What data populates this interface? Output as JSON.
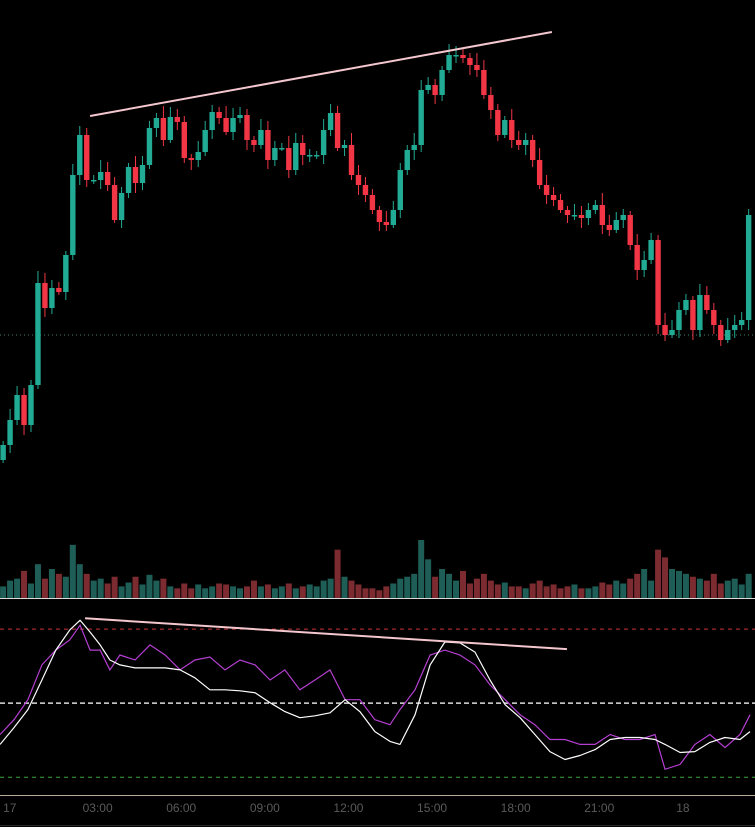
{
  "chart_data": {
    "type": "candlestick",
    "title": "",
    "colors": {
      "up": "#22ab94",
      "down": "#f23645",
      "vol_up": "#1e5e57",
      "vol_down": "#7c2b31",
      "trendline": "#f4c7cf",
      "stoch_k": "#b53fd1",
      "stoch_d": "#ffffff",
      "level_high": "#c8373d",
      "level_mid": "#dddddd",
      "level_low": "#3fa83f",
      "last_price_line": "#4a7a6a"
    },
    "x_axis": {
      "unit": "hours",
      "start_hour": -0.39,
      "interval_hours": 0.25,
      "ticks": [
        {
          "h": -0.15,
          "label": "17"
        },
        {
          "h": 3,
          "label": "03:00"
        },
        {
          "h": 6,
          "label": "06:00"
        },
        {
          "h": 9,
          "label": "09:00"
        },
        {
          "h": 12,
          "label": "12:00"
        },
        {
          "h": 15,
          "label": "15:00"
        },
        {
          "h": 18,
          "label": "18:00"
        },
        {
          "h": 21,
          "label": "21:00"
        },
        {
          "h": 24,
          "label": "18"
        }
      ]
    },
    "price_ylim": [
      -98,
      500
    ],
    "first_open": 40,
    "closes": [
      55,
      80,
      105,
      75,
      115,
      217,
      192,
      212,
      208,
      245,
      325,
      365,
      320,
      320,
      328,
      315,
      280,
      307,
      333,
      317,
      335,
      372,
      382,
      360,
      383,
      378,
      342,
      340,
      348,
      370,
      388,
      382,
      368,
      382,
      385,
      360,
      355,
      370,
      340,
      352,
      352,
      330,
      357,
      345,
      345,
      345,
      370,
      387,
      352,
      355,
      325,
      315,
      305,
      290,
      278,
      275,
      290,
      330,
      350,
      355,
      410,
      415,
      405,
      430,
      445,
      445,
      442,
      435,
      430,
      405,
      390,
      365,
      380,
      360,
      355,
      360,
      340,
      315,
      305,
      300,
      290,
      285,
      285,
      282,
      290,
      295,
      275,
      270,
      280,
      285,
      255,
      230,
      240,
      260,
      175,
      165,
      170,
      190,
      200,
      170,
      205,
      190,
      175,
      160,
      170,
      175,
      180,
      285
    ],
    "volumes": [
      12,
      18,
      20,
      28,
      15,
      35,
      20,
      30,
      25,
      22,
      55,
      35,
      25,
      18,
      20,
      15,
      22,
      12,
      16,
      22,
      14,
      24,
      18,
      20,
      12,
      10,
      15,
      10,
      14,
      10,
      12,
      15,
      14,
      12,
      10,
      12,
      18,
      12,
      14,
      10,
      12,
      15,
      10,
      12,
      14,
      12,
      18,
      20,
      50,
      22,
      18,
      14,
      10,
      10,
      8,
      12,
      15,
      20,
      22,
      25,
      60,
      40,
      22,
      30,
      25,
      18,
      28,
      15,
      20,
      25,
      18,
      14,
      16,
      12,
      12,
      10,
      15,
      18,
      12,
      14,
      10,
      12,
      14,
      10,
      10,
      12,
      16,
      14,
      18,
      15,
      20,
      25,
      30,
      18,
      50,
      42,
      30,
      28,
      25,
      22,
      20,
      18,
      25,
      15,
      18,
      20,
      14,
      25
    ],
    "last_price_level": 165,
    "price_trendline": [
      {
        "h": 2.73,
        "price": 384
      },
      {
        "h": 19.3,
        "price": 468
      }
    ],
    "oscillator": {
      "ylim": [
        12.8,
        91.8
      ],
      "levels": [
        80,
        50,
        20
      ],
      "x_hours": [
        -0.5,
        0,
        0.5,
        1,
        1.5,
        2,
        2.37,
        2.73,
        3.09,
        3.44,
        3.8,
        4.34,
        4.88,
        5.42,
        5.96,
        6.49,
        7.03,
        7.57,
        8.11,
        8.65,
        9.19,
        9.72,
        10.26,
        10.8,
        11.34,
        11.88,
        12.41,
        12.95,
        13.49,
        13.85,
        14.39,
        14.93,
        15.46,
        16,
        16.54,
        17.08,
        17.62,
        18.16,
        18.69,
        19.23,
        19.77,
        20.31,
        20.85,
        21.39,
        21.92,
        22.46,
        23,
        23.36,
        23.9,
        24.43,
        24.97,
        25.51,
        26.05,
        26.41
      ],
      "k": [
        37.3,
        43.3,
        51.4,
        65.5,
        71.5,
        75.6,
        81.6,
        71.5,
        71.5,
        63.5,
        69.5,
        67.5,
        73.6,
        69.5,
        63.5,
        67.5,
        68.7,
        63.5,
        67.5,
        65.5,
        59.4,
        63.5,
        55.4,
        59.4,
        63.5,
        51.4,
        51.4,
        43.3,
        41.3,
        47.4,
        55.4,
        69.5,
        71.5,
        69.5,
        65.5,
        57.4,
        51.4,
        45.3,
        41.3,
        35.3,
        35.3,
        33.3,
        33.3,
        37.3,
        35.3,
        35.3,
        37.3,
        23.2,
        25.2,
        33.3,
        37.3,
        32.0,
        37.3,
        45.3
      ],
      "d": [
        33.3,
        40.1,
        47.4,
        59.4,
        71.5,
        79.6,
        83.6,
        78.8,
        73.6,
        67.5,
        65.5,
        64.3,
        64.3,
        64.3,
        63.5,
        60.3,
        55.4,
        55.4,
        55.0,
        54.2,
        50.2,
        46.6,
        44.1,
        44.9,
        46.1,
        51.4,
        46.6,
        38.5,
        34.5,
        33.3,
        45.3,
        65.5,
        74.8,
        74.4,
        70.7,
        59.4,
        49.4,
        44.1,
        37.3,
        30.4,
        27.2,
        28.8,
        31.2,
        35.3,
        36.1,
        36.1,
        35.3,
        33.3,
        30.0,
        30.4,
        34.1,
        36.1,
        35.3,
        38.5
      ],
      "trendline": [
        {
          "h": 2.55,
          "value": 84.4
        },
        {
          "h": 19.84,
          "value": 71.9
        }
      ]
    }
  }
}
